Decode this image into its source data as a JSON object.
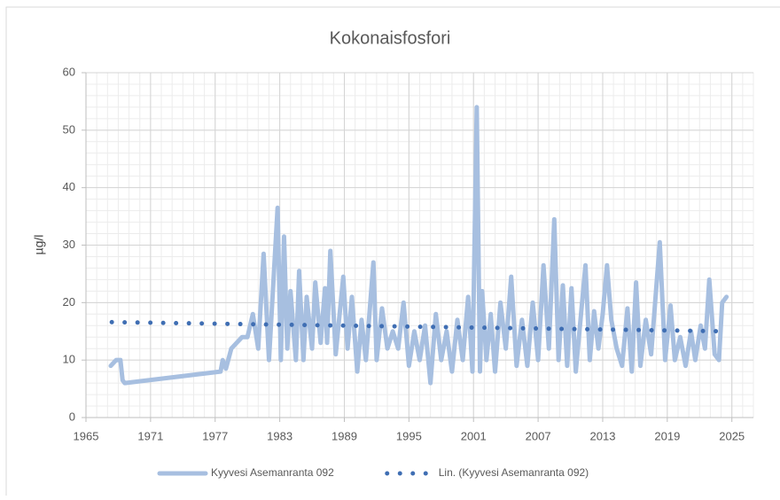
{
  "chart_data": {
    "type": "line",
    "title": "Kokonaisfosfori",
    "y_label": "µg/l",
    "xlim": [
      1965,
      2027
    ],
    "xticks": [
      1965,
      1971,
      1977,
      1983,
      1989,
      1995,
      2001,
      2007,
      2013,
      2019,
      2025
    ],
    "ylim": [
      0,
      60
    ],
    "yticks": [
      0,
      10,
      20,
      30,
      40,
      50,
      60
    ],
    "grid": true,
    "legend": "bottom",
    "series": [
      {
        "name": "Kyyvesi Asemanranta 092",
        "color": "#a7bfe0",
        "style": "solid",
        "x": [
          1967.3,
          1967.8,
          1968.2,
          1968.4,
          1968.6,
          1977.5,
          1977.7,
          1978,
          1978.5,
          1979,
          1979.5,
          1980,
          1980.5,
          1981,
          1981.5,
          1982,
          1982.8,
          1983.1,
          1983.4,
          1983.7,
          1984,
          1984.5,
          1984.8,
          1985.2,
          1985.5,
          1986,
          1986.3,
          1986.8,
          1987.2,
          1987.4,
          1987.7,
          1988.2,
          1988.9,
          1989.3,
          1989.7,
          1990.2,
          1990.6,
          1991,
          1991.7,
          1992,
          1992.5,
          1993,
          1993.5,
          1994,
          1994.5,
          1995,
          1995.5,
          1996,
          1996.5,
          1997,
          1997.5,
          1998,
          1998.5,
          1999,
          1999.5,
          2000,
          2000.5,
          2000.9,
          2001.3,
          2001.6,
          2001.8,
          2002.2,
          2002.6,
          2003,
          2003.5,
          2004,
          2004.5,
          2005,
          2005.5,
          2006,
          2006.5,
          2007,
          2007.5,
          2008,
          2008.5,
          2008.9,
          2009.3,
          2009.7,
          2010.1,
          2010.5,
          2011.4,
          2011.8,
          2012.2,
          2012.6,
          2013,
          2013.4,
          2013.8,
          2014.3,
          2014.8,
          2015.3,
          2015.7,
          2016.1,
          2016.5,
          2017,
          2017.5,
          2018.3,
          2018.8,
          2019.3,
          2019.7,
          2020.2,
          2020.7,
          2021.2,
          2021.6,
          2022.1,
          2022.5,
          2022.9,
          2023.4,
          2023.8,
          2024.1,
          2024.5
        ],
        "values": [
          9,
          10,
          10,
          6.5,
          6,
          8,
          10,
          8.5,
          12,
          13,
          14,
          14,
          18,
          12,
          28.5,
          10,
          36.5,
          10,
          31.5,
          12,
          22,
          10,
          25.5,
          10,
          21,
          12,
          23.5,
          13,
          22.5,
          13,
          29,
          11,
          24.5,
          12,
          21,
          8,
          17,
          10,
          27,
          10,
          19,
          12,
          15,
          12,
          20,
          9,
          15,
          10,
          16,
          6,
          18,
          10,
          15,
          8,
          17,
          10,
          21,
          8,
          54,
          8,
          22,
          10,
          18,
          8,
          20,
          12,
          24.5,
          9,
          17,
          9,
          20,
          10,
          26.5,
          12,
          34.5,
          10,
          23,
          9,
          22.5,
          8,
          26.5,
          10,
          18.5,
          12,
          18,
          26.5,
          17,
          12,
          9,
          19,
          8,
          23.5,
          9,
          17,
          11,
          30.5,
          10,
          19.5,
          10,
          14,
          9,
          15,
          10,
          16,
          12,
          24,
          11,
          10,
          20,
          21
        ]
      },
      {
        "name": "Lin. (Kyyvesi Asemanranta 092)",
        "color": "#3f6eb3",
        "style": "dotted",
        "x": [
          1967.4,
          2024.5
        ],
        "values": [
          16.6,
          15.0
        ]
      }
    ]
  }
}
